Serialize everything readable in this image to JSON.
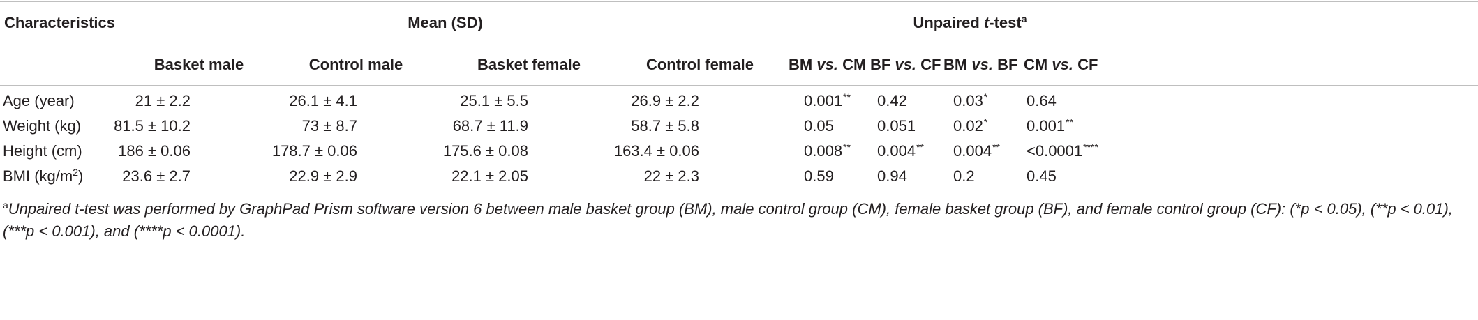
{
  "header": {
    "characteristics": "Characteristics",
    "mean_sd": "Mean (SD)",
    "ttest_prefix": "Unpaired ",
    "ttest_t": "t",
    "ttest_suffix": "-test",
    "ttest_sup": "a"
  },
  "columns": {
    "basket_male": "Basket male",
    "control_male": "Control male",
    "basket_female": "Basket female",
    "control_female": "Control female",
    "comparisons": [
      {
        "a": "BM",
        "vs": "vs.",
        "b": "CM"
      },
      {
        "a": "BF",
        "vs": "vs.",
        "b": "CF"
      },
      {
        "a": "BM",
        "vs": "vs.",
        "b": "BF"
      },
      {
        "a": "CM",
        "vs": "vs.",
        "b": "CF"
      }
    ]
  },
  "rows": [
    {
      "label": "Age (year)",
      "label_sup": "",
      "bm": "21 ± 2.2",
      "cm": "26.1 ± 4.1",
      "bf": "25.1 ± 5.5",
      "cf": "26.9 ± 2.2",
      "p": [
        {
          "v": "0.001",
          "s": "**"
        },
        {
          "v": "0.42",
          "s": ""
        },
        {
          "v": "0.03",
          "s": "*"
        },
        {
          "v": "0.64",
          "s": ""
        }
      ]
    },
    {
      "label": "Weight (kg)",
      "label_sup": "",
      "bm": "81.5 ± 10.2",
      "cm": "73 ± 8.7",
      "bf": "68.7 ± 11.9",
      "cf": "58.7 ± 5.8",
      "p": [
        {
          "v": "0.05",
          "s": ""
        },
        {
          "v": "0.051",
          "s": ""
        },
        {
          "v": "0.02",
          "s": "*"
        },
        {
          "v": "0.001",
          "s": "**"
        }
      ]
    },
    {
      "label": "Height (cm)",
      "label_sup": "",
      "bm": "186 ± 0.06",
      "cm": "178.7 ± 0.06",
      "bf": "175.6 ± 0.08",
      "cf": "163.4 ± 0.06",
      "p": [
        {
          "v": "0.008",
          "s": "**"
        },
        {
          "v": "0.004",
          "s": "**"
        },
        {
          "v": "0.004",
          "s": "**"
        },
        {
          "v": "<0.0001",
          "s": "****"
        }
      ]
    },
    {
      "label": "BMI (kg/m",
      "label_sup": "2",
      "label_end": ")",
      "bm": "23.6 ± 2.7",
      "cm": "22.9 ± 2.9",
      "bf": "22.1 ± 2.05",
      "cf": "22 ± 2.3",
      "p": [
        {
          "v": "0.59",
          "s": ""
        },
        {
          "v": "0.94",
          "s": ""
        },
        {
          "v": "0.2",
          "s": ""
        },
        {
          "v": "0.45",
          "s": ""
        }
      ]
    }
  ],
  "footnote": {
    "marker": "a",
    "text": "Unpaired t-test was performed by GraphPad Prism software version 6 between male basket group (BM), male control group (CM), female basket group (BF), and female control group (CF): (*p < 0.05), (**p < 0.01), (***p < 0.001), and (****p < 0.0001)."
  }
}
